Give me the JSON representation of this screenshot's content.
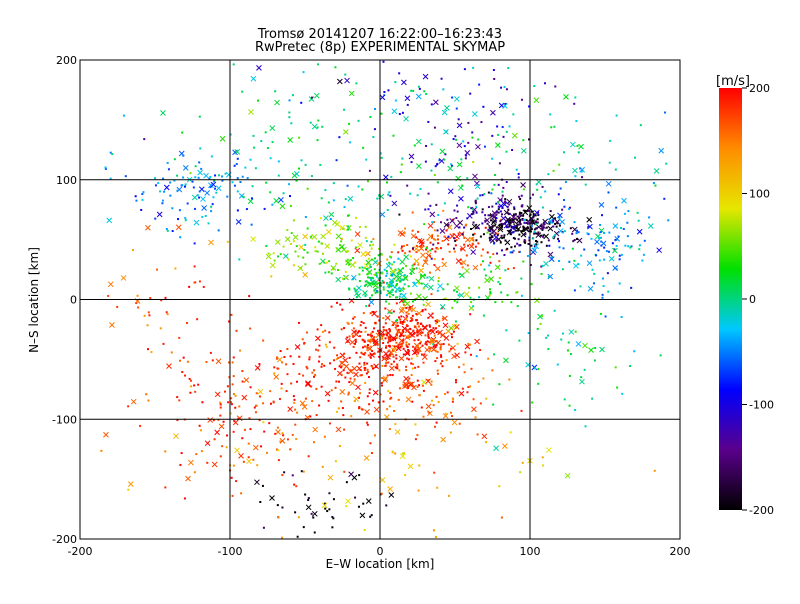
{
  "chart_data": {
    "type": "scatter",
    "title": "Tromsø 20141207 16:22:00–16:23:43",
    "subtitle": "RwPretec (8p) EXPERIMENTAL SKYMAP",
    "xlabel": "E–W location [km]",
    "ylabel": "N–S location [km]",
    "xlim": [
      -200,
      200
    ],
    "ylim": [
      -200,
      200
    ],
    "xticks": [
      -200,
      -100,
      0,
      100,
      200
    ],
    "yticks": [
      -200,
      -100,
      0,
      100,
      200
    ],
    "grid": true,
    "marker_types": [
      "dot",
      "cross"
    ],
    "colorbar": {
      "label": "[m/s]",
      "range": [
        -200,
        200
      ],
      "ticks": [
        -200,
        -100,
        0,
        100,
        200
      ],
      "colors": [
        "#000000",
        "#5a008c",
        "#0000ff",
        "#00c8ff",
        "#00e000",
        "#e6e600",
        "#ff8c00",
        "#ff0000"
      ]
    },
    "clusters": [
      {
        "cx": 15,
        "cy": -30,
        "rx": 30,
        "ry": 20,
        "vel": 190,
        "count": 320
      },
      {
        "cx": -10,
        "cy": -55,
        "rx": 45,
        "ry": 35,
        "vel": 185,
        "count": 260
      },
      {
        "cx": -90,
        "cy": -90,
        "rx": 60,
        "ry": 55,
        "vel": 175,
        "count": 180
      },
      {
        "cx": 40,
        "cy": -80,
        "rx": 40,
        "ry": 40,
        "vel": 160,
        "count": 90
      },
      {
        "cx": 40,
        "cy": 45,
        "rx": 35,
        "ry": 20,
        "vel": 170,
        "count": 140
      },
      {
        "cx": 5,
        "cy": 15,
        "rx": 20,
        "ry": 15,
        "vel": 10,
        "count": 180
      },
      {
        "cx": -30,
        "cy": 40,
        "rx": 40,
        "ry": 20,
        "vel": 60,
        "count": 120
      },
      {
        "cx": 95,
        "cy": 60,
        "rx": 25,
        "ry": 15,
        "vel": -190,
        "count": 220
      },
      {
        "cx": 75,
        "cy": 70,
        "rx": 45,
        "ry": 30,
        "vel": -130,
        "count": 150
      },
      {
        "cx": 140,
        "cy": 50,
        "rx": 45,
        "ry": 35,
        "vel": -40,
        "count": 130
      },
      {
        "cx": -120,
        "cy": 90,
        "rx": 40,
        "ry": 30,
        "vel": -50,
        "count": 110
      },
      {
        "cx": -30,
        "cy": 120,
        "rx": 90,
        "ry": 60,
        "vel": 0,
        "count": 160
      },
      {
        "cx": 40,
        "cy": 150,
        "rx": 60,
        "ry": 45,
        "vel": -110,
        "count": 80
      },
      {
        "cx": 100,
        "cy": 120,
        "rx": 80,
        "ry": 50,
        "vel": 0,
        "count": 90
      },
      {
        "cx": -40,
        "cy": -170,
        "rx": 40,
        "ry": 25,
        "vel": -190,
        "count": 45
      },
      {
        "cx": 0,
        "cy": -140,
        "rx": 120,
        "ry": 50,
        "vel": 120,
        "count": 70
      },
      {
        "cx": 120,
        "cy": -40,
        "rx": 60,
        "ry": 50,
        "vel": 0,
        "count": 60
      },
      {
        "cx": 60,
        "cy": 5,
        "rx": 40,
        "ry": 20,
        "vel": 30,
        "count": 80
      },
      {
        "cx": -150,
        "cy": 0,
        "rx": 40,
        "ry": 70,
        "vel": 160,
        "count": 40
      }
    ]
  }
}
